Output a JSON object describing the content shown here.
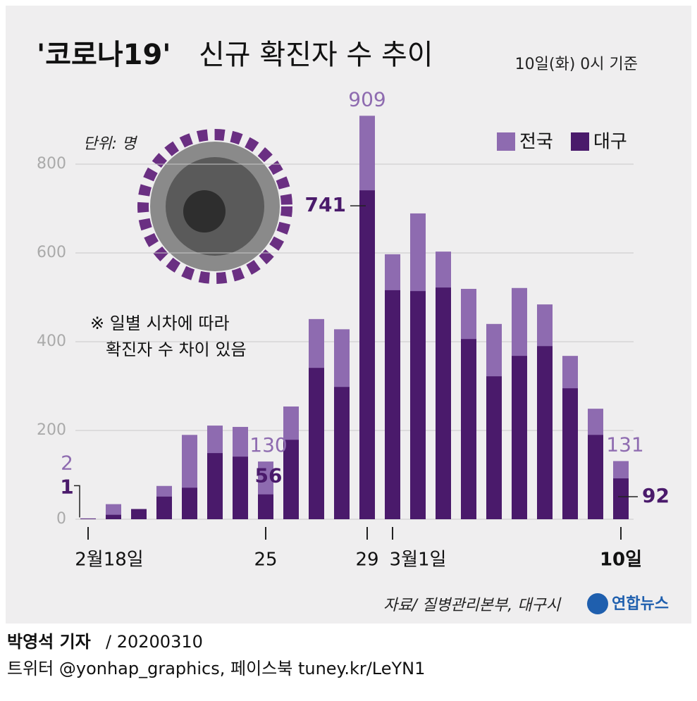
{
  "chart_data": {
    "type": "bar",
    "title": "'코로나19'",
    "subtitle": "신규 확진자 수 추이",
    "date_note": "10일(화) 0시 기준",
    "unit": "단위: 명",
    "annotation": [
      "※ 일별 시차에 따라",
      "확진자 수 차이 있음"
    ],
    "source": "자료/ 질병관리본부, 대구시",
    "brand": "연합뉴스",
    "categories": [
      "2월18일",
      null,
      null,
      null,
      null,
      null,
      null,
      "25",
      null,
      null,
      null,
      "29",
      "3월1일",
      null,
      null,
      null,
      null,
      null,
      null,
      null,
      null,
      "10일"
    ],
    "series": [
      {
        "name": "전국",
        "color": "#8e6bb0",
        "values": [
          2,
          34,
          23,
          75,
          190,
          211,
          208,
          130,
          254,
          451,
          428,
          909,
          597,
          689,
          603,
          519,
          440,
          521,
          484,
          368,
          249,
          131
        ]
      },
      {
        "name": "대구",
        "color": "#4a1a6b",
        "values": [
          1,
          10,
          23,
          51,
          71,
          149,
          141,
          56,
          179,
          341,
          298,
          741,
          516,
          514,
          522,
          406,
          322,
          368,
          390,
          295,
          190,
          92
        ]
      }
    ],
    "ylim": [
      0,
      950
    ],
    "yticks": [
      0,
      200,
      400,
      600,
      800
    ],
    "grid": true,
    "legend": "top-right"
  },
  "footer": {
    "author": "박영석 기자",
    "date": "/  20200310",
    "sns": "트위터 @yonhap_graphics, 페이스북 tuney.kr/LeYN1"
  }
}
